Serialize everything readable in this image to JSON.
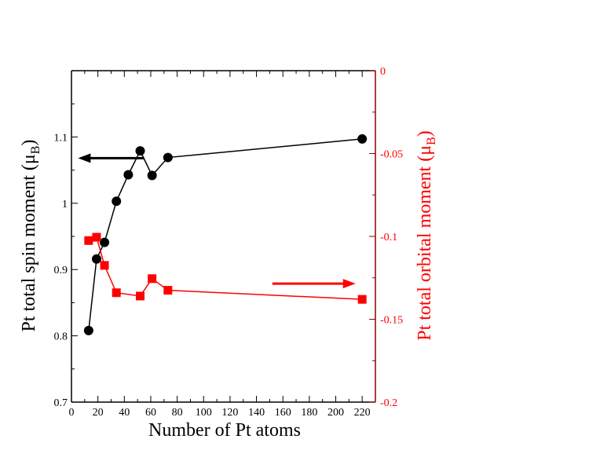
{
  "chart_data": {
    "type": "line",
    "xlabel": "Number of Pt atoms",
    "ylabel_left_main": "Pt total spin moment (μ",
    "ylabel_left_sub": "B",
    "ylabel_left_close": ")",
    "ylabel_right_main": "Pt total orbital moment (μ",
    "ylabel_right_sub": "B",
    "ylabel_right_close": ")",
    "xlim": [
      0,
      230
    ],
    "ylim_left": [
      0.7,
      1.2
    ],
    "ylim_right": [
      -0.2,
      0
    ],
    "x_ticks": [
      0,
      20,
      40,
      60,
      80,
      100,
      120,
      140,
      160,
      180,
      200,
      220
    ],
    "x_tick_labels": [
      "0",
      "20",
      "40",
      "60",
      "80",
      "100",
      "120",
      "140",
      "160",
      "180",
      "200",
      "220"
    ],
    "y_left_ticks": [
      0.7,
      0.8,
      0.9,
      1.0,
      1.1
    ],
    "y_left_tick_labels": [
      "0.7",
      "0.8",
      "0.9",
      "1",
      "1.1"
    ],
    "y_right_ticks": [
      0,
      -0.05,
      -0.1,
      -0.15,
      -0.2
    ],
    "y_right_tick_labels": [
      "0",
      "-0.05",
      "-0.1",
      "-0.15",
      "-0.2"
    ],
    "series": [
      {
        "name": "spin",
        "axis": "left",
        "color": "#000000",
        "marker": "circle",
        "x": [
          13,
          19,
          25,
          34,
          43,
          52,
          61,
          73,
          220
        ],
        "y": [
          0.808,
          0.916,
          0.941,
          1.003,
          1.043,
          1.079,
          1.042,
          1.069,
          1.097
        ]
      },
      {
        "name": "orbital",
        "axis": "right",
        "color": "#ff0000",
        "marker": "square",
        "x": [
          13,
          19,
          25,
          34,
          52,
          61,
          73,
          220
        ],
        "y": [
          -0.1025,
          -0.1005,
          -0.1175,
          -0.134,
          -0.136,
          -0.1255,
          -0.1325,
          -0.138
        ]
      }
    ],
    "arrows": [
      {
        "points_to": "left",
        "color": "#000000",
        "x_from": 55,
        "x_to": 5,
        "y_axis": "left",
        "y": 1.068
      },
      {
        "points_to": "right",
        "color": "#ff0000",
        "x_from": 152,
        "x_to": 215,
        "y_axis": "right",
        "y": -0.1285
      }
    ],
    "colors": {
      "left_axis": "#000000",
      "right_axis": "#ff0000",
      "right_spine": "#8b0000"
    }
  }
}
